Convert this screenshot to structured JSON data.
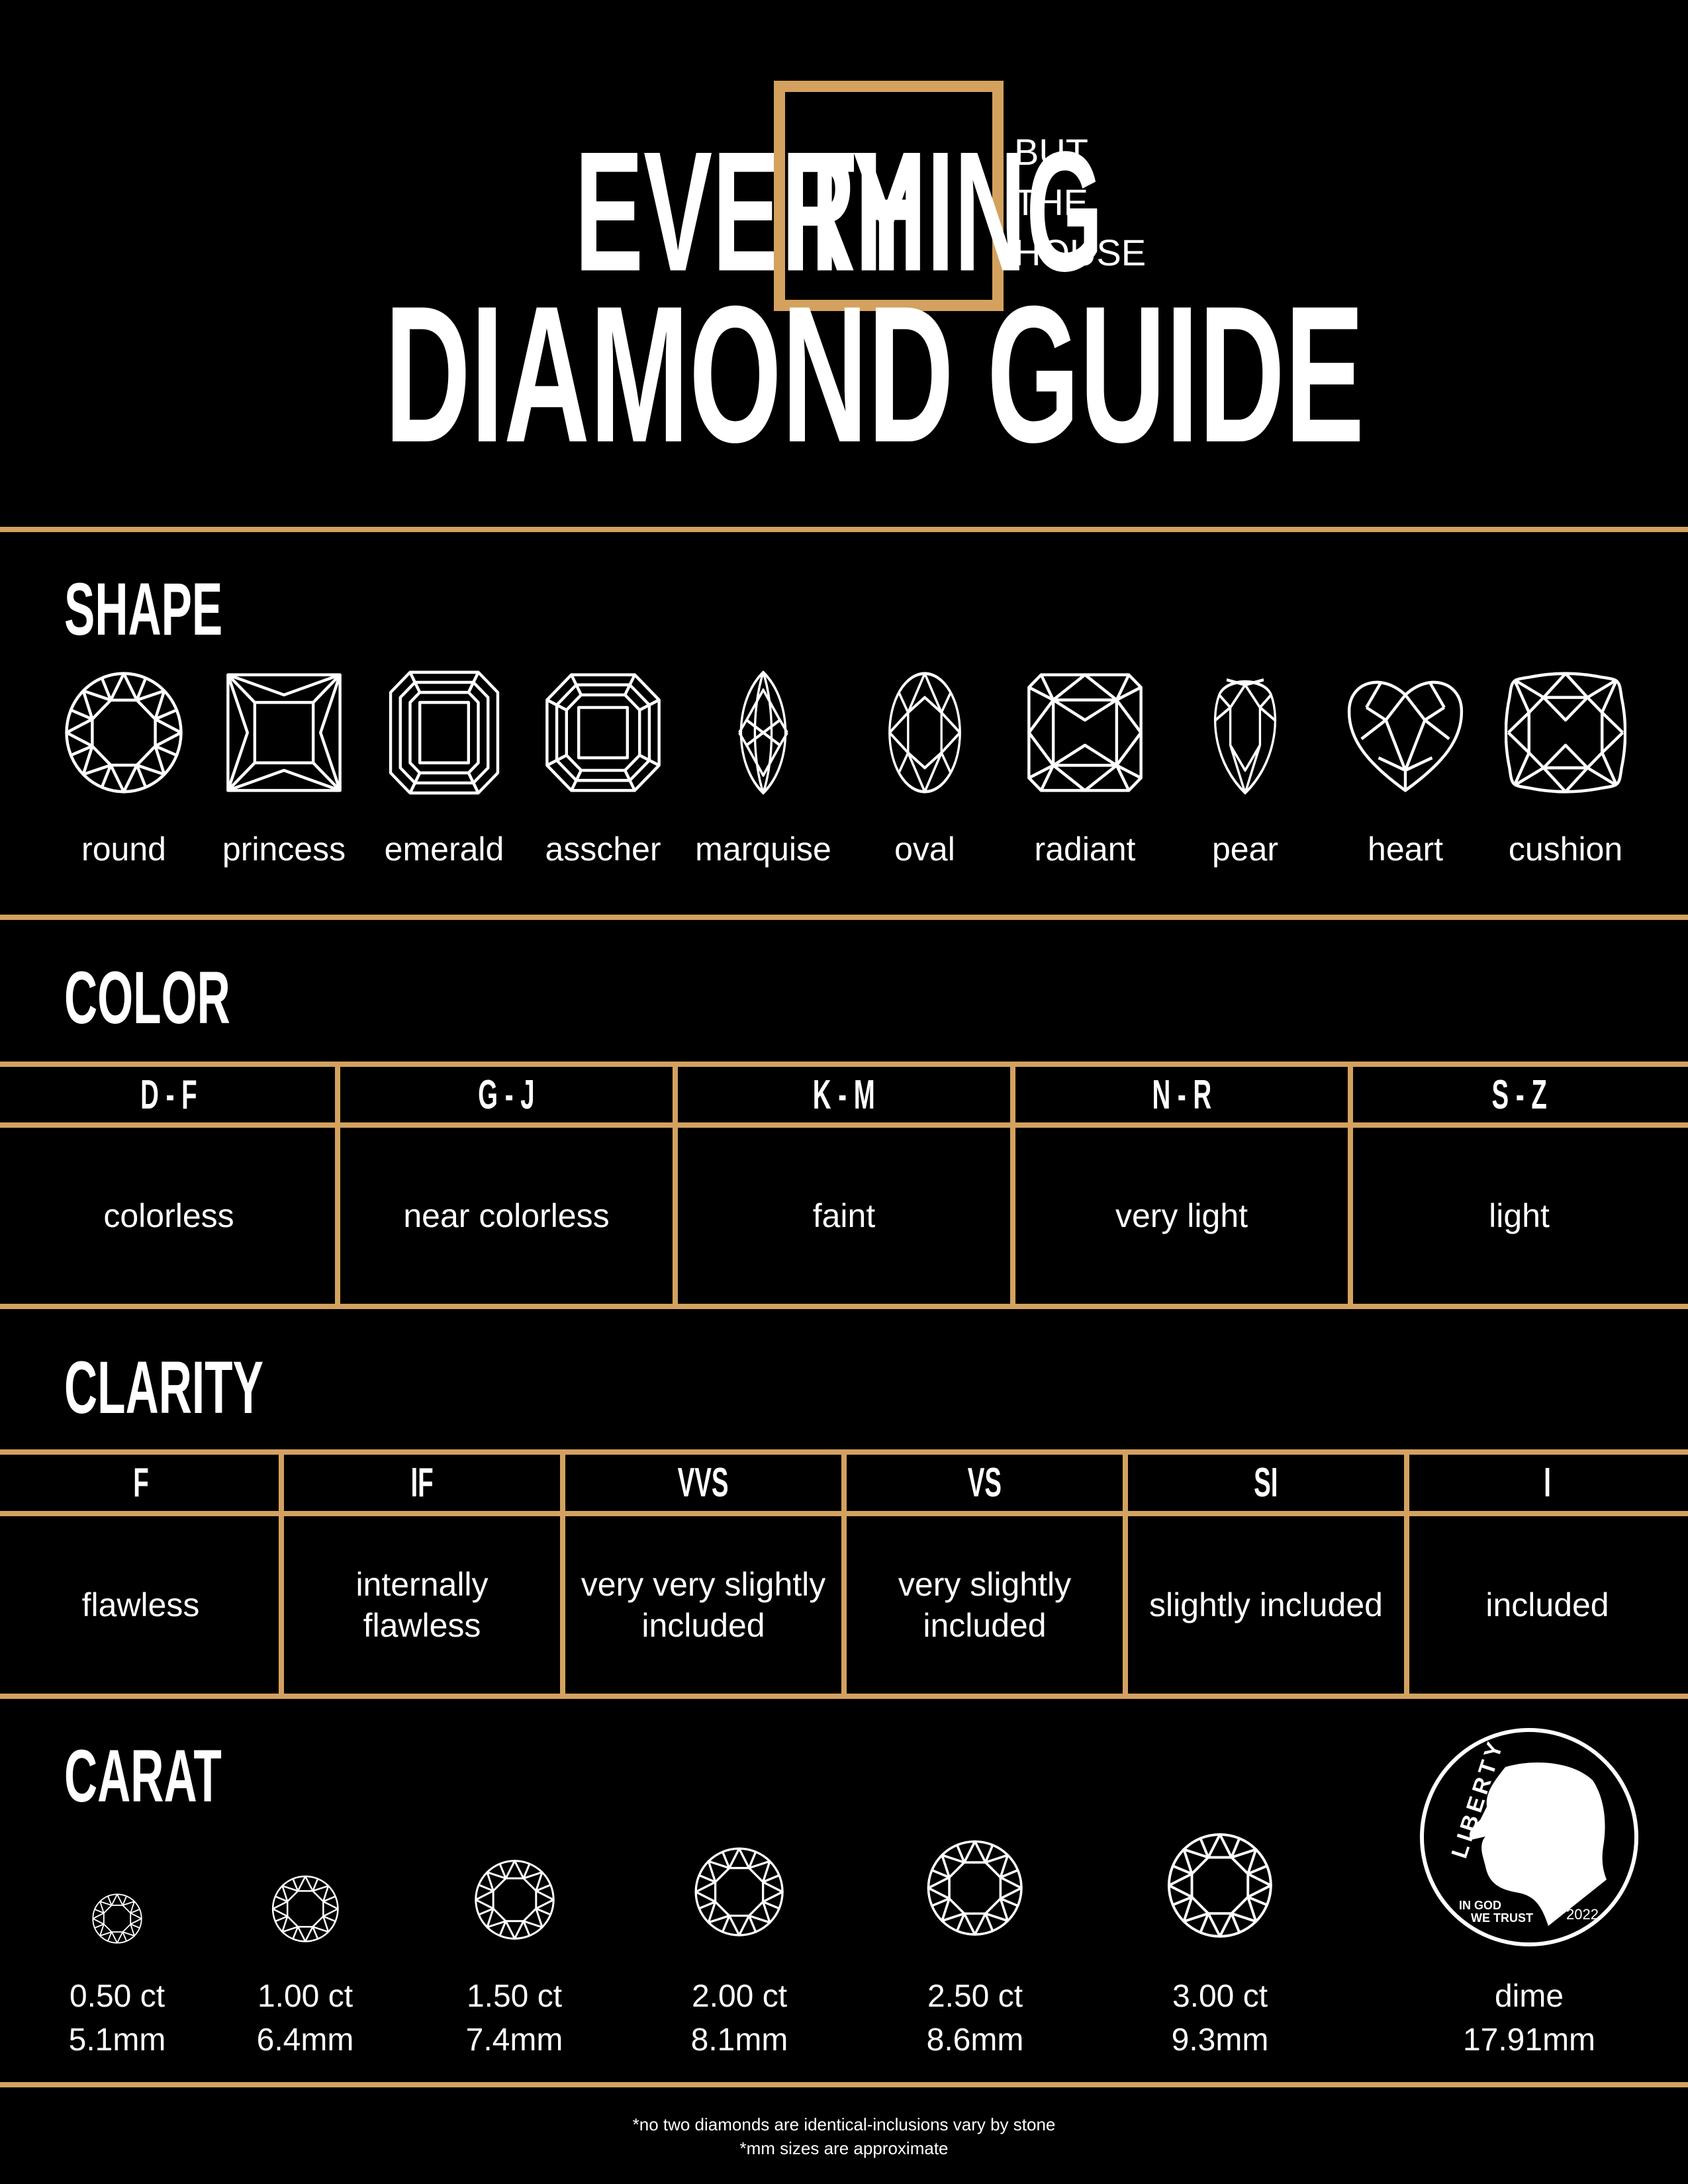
{
  "logo": {
    "every": "EVERY",
    "thing": "THING",
    "but": "BUT",
    "the": "THE",
    "house": "HOUSE"
  },
  "title": "DIAMOND GUIDE",
  "colors": {
    "background": "#000000",
    "accent": "#d4a15f",
    "text": "#ffffff"
  },
  "shape": {
    "heading": "SHAPE",
    "items": [
      {
        "label": "round",
        "icon": "round-diamond-icon"
      },
      {
        "label": "princess",
        "icon": "princess-diamond-icon"
      },
      {
        "label": "emerald",
        "icon": "emerald-diamond-icon"
      },
      {
        "label": "asscher",
        "icon": "asscher-diamond-icon"
      },
      {
        "label": "marquise",
        "icon": "marquise-diamond-icon"
      },
      {
        "label": "oval",
        "icon": "oval-diamond-icon"
      },
      {
        "label": "radiant",
        "icon": "radiant-diamond-icon"
      },
      {
        "label": "pear",
        "icon": "pear-diamond-icon"
      },
      {
        "label": "heart",
        "icon": "heart-diamond-icon"
      },
      {
        "label": "cushion",
        "icon": "cushion-diamond-icon"
      }
    ]
  },
  "color": {
    "heading": "COLOR",
    "columns": [
      {
        "grade": "D - F",
        "desc": "colorless"
      },
      {
        "grade": "G - J",
        "desc": "near colorless"
      },
      {
        "grade": "K - M",
        "desc": "faint"
      },
      {
        "grade": "N - R",
        "desc": "very light"
      },
      {
        "grade": "S - Z",
        "desc": "light"
      }
    ]
  },
  "clarity": {
    "heading": "CLARITY",
    "columns": [
      {
        "grade": "F",
        "desc": "flawless"
      },
      {
        "grade": "IF",
        "desc": "internally flawless"
      },
      {
        "grade": "VVS",
        "desc": "very very slightly included"
      },
      {
        "grade": "VS",
        "desc": "very slightly included"
      },
      {
        "grade": "SI",
        "desc": "slightly included"
      },
      {
        "grade": "I",
        "desc": "included"
      }
    ]
  },
  "carat": {
    "heading": "CARAT",
    "items": [
      {
        "weight": "0.50 ct",
        "size": "5.1mm",
        "mm": 5.1
      },
      {
        "weight": "1.00 ct",
        "size": "6.4mm",
        "mm": 6.4
      },
      {
        "weight": "1.50 ct",
        "size": "7.4mm",
        "mm": 7.4
      },
      {
        "weight": "2.00 ct",
        "size": "8.1mm",
        "mm": 8.1
      },
      {
        "weight": "2.50 ct",
        "size": "8.6mm",
        "mm": 8.6
      },
      {
        "weight": "3.00 ct",
        "size": "9.3mm",
        "mm": 9.3
      }
    ],
    "dime": {
      "label": "dime",
      "size": "17.91mm",
      "coin_liberty": "LIBERTY",
      "coin_motto_1": "IN GOD",
      "coin_motto_2": "WE TRUST",
      "coin_year": "2022"
    }
  },
  "footnotes": [
    "*no two diamonds are identical-inclusions vary by stone",
    "*mm sizes are approximate"
  ]
}
